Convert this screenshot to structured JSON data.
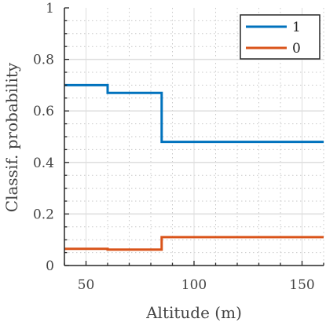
{
  "chart_data": {
    "type": "line",
    "step": true,
    "xlabel": "Altitude (m)",
    "ylabel": "Classif. probability",
    "xlim": [
      40,
      160
    ],
    "ylim": [
      0,
      1
    ],
    "xticks": [
      50,
      100,
      150
    ],
    "xtick_labels": [
      "50",
      "100",
      "150"
    ],
    "yticks": [
      0,
      0.2,
      0.4,
      0.6,
      0.8,
      1
    ],
    "ytick_labels": [
      "0",
      "0.2",
      "0.4",
      "0.6",
      "0.8",
      "1"
    ],
    "grid": "major solid, minor dotted",
    "legend_position": "top-right",
    "series": [
      {
        "name": "1",
        "color": "#0072BD",
        "x": [
          40,
          60,
          60,
          85,
          85,
          160
        ],
        "y": [
          0.7,
          0.7,
          0.67,
          0.67,
          0.48,
          0.48
        ]
      },
      {
        "name": "0",
        "color": "#D95319",
        "x": [
          40,
          60,
          60,
          85,
          85,
          160
        ],
        "y": [
          0.065,
          0.065,
          0.062,
          0.062,
          0.11,
          0.11
        ]
      }
    ]
  }
}
